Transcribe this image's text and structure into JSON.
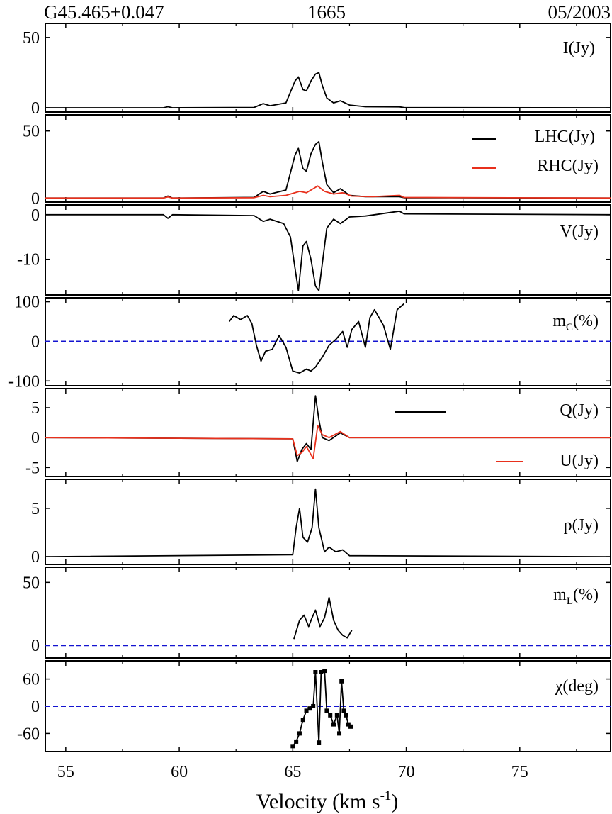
{
  "header": {
    "source": "G45.465+0.047",
    "frequency": "1665",
    "date": "05/2003"
  },
  "x_axis": {
    "label": "Velocity (km s",
    "label_sup": "-1",
    "label_close": ")",
    "ticks": [
      "55",
      "60",
      "65",
      "70",
      "75"
    ],
    "range": [
      54.1,
      79.0
    ]
  },
  "colors": {
    "black": "#000000",
    "red": "#e8301c",
    "blue": "#1414d0"
  },
  "chart_data": [
    {
      "type": "line",
      "panel_label": "I(Jy)",
      "ylim": [
        -3,
        60
      ],
      "yticks": [
        "0",
        "50"
      ],
      "ytick_values": [
        0,
        50
      ],
      "series": [
        {
          "color": "#000000",
          "points": [
            [
              54.1,
              0
            ],
            [
              59.3,
              0
            ],
            [
              59.5,
              0.8
            ],
            [
              59.7,
              0
            ],
            [
              63.3,
              0.3
            ],
            [
              63.7,
              3
            ],
            [
              64.0,
              1.5
            ],
            [
              64.7,
              3.5
            ],
            [
              65.1,
              19
            ],
            [
              65.25,
              22
            ],
            [
              65.45,
              13
            ],
            [
              65.6,
              12
            ],
            [
              65.8,
              19
            ],
            [
              66.0,
              24
            ],
            [
              66.15,
              25
            ],
            [
              66.3,
              16
            ],
            [
              66.5,
              7
            ],
            [
              66.8,
              3.5
            ],
            [
              67.1,
              5
            ],
            [
              67.5,
              2
            ],
            [
              68.2,
              0.8
            ],
            [
              69.7,
              0.7
            ],
            [
              69.9,
              0.2
            ],
            [
              79,
              0
            ]
          ]
        }
      ]
    },
    {
      "type": "line",
      "panel_label_left": "LHC(Jy)",
      "panel_label_right": "RHC(Jy)",
      "ylim": [
        -3,
        62
      ],
      "yticks": [
        "0",
        "50"
      ],
      "ytick_values": [
        0,
        50
      ],
      "series": [
        {
          "name": "LHC(Jy)",
          "color": "#000000",
          "points": [
            [
              54.1,
              0
            ],
            [
              59.3,
              0
            ],
            [
              59.5,
              1.5
            ],
            [
              59.7,
              0
            ],
            [
              63.3,
              0.5
            ],
            [
              63.7,
              5
            ],
            [
              64.0,
              3
            ],
            [
              64.7,
              6
            ],
            [
              65.1,
              32
            ],
            [
              65.25,
              37
            ],
            [
              65.45,
              22
            ],
            [
              65.6,
              20
            ],
            [
              65.8,
              33
            ],
            [
              66.0,
              40
            ],
            [
              66.15,
              42
            ],
            [
              66.3,
              27
            ],
            [
              66.5,
              10
            ],
            [
              66.8,
              4
            ],
            [
              67.1,
              7
            ],
            [
              67.5,
              2
            ],
            [
              68.2,
              1
            ],
            [
              69.7,
              1
            ],
            [
              69.9,
              0.3
            ],
            [
              79,
              0
            ]
          ]
        },
        {
          "name": "RHC(Jy)",
          "color": "#e8301c",
          "points": [
            [
              54.1,
              0
            ],
            [
              59.3,
              0
            ],
            [
              59.5,
              0.8
            ],
            [
              59.7,
              0
            ],
            [
              63.3,
              0.3
            ],
            [
              63.7,
              2
            ],
            [
              64.0,
              1
            ],
            [
              64.7,
              2
            ],
            [
              65.1,
              4
            ],
            [
              65.3,
              5
            ],
            [
              65.6,
              4
            ],
            [
              65.9,
              7
            ],
            [
              66.1,
              9
            ],
            [
              66.4,
              5
            ],
            [
              66.8,
              3
            ],
            [
              67.2,
              4
            ],
            [
              67.6,
              1.5
            ],
            [
              68.5,
              1
            ],
            [
              69.7,
              2
            ],
            [
              69.9,
              0.5
            ],
            [
              79,
              0
            ]
          ]
        }
      ]
    },
    {
      "type": "line",
      "panel_label": "V(Jy)",
      "ylim": [
        -18,
        2.2
      ],
      "yticks": [
        "0",
        "-10"
      ],
      "ytick_values": [
        0,
        -10
      ],
      "series": [
        {
          "color": "#000000",
          "points": [
            [
              54.1,
              0
            ],
            [
              59.3,
              0
            ],
            [
              59.5,
              -0.8
            ],
            [
              59.7,
              0
            ],
            [
              63.3,
              -0.2
            ],
            [
              63.7,
              -1.5
            ],
            [
              64.0,
              -1
            ],
            [
              64.6,
              -2
            ],
            [
              64.9,
              -5
            ],
            [
              65.1,
              -12
            ],
            [
              65.25,
              -17
            ],
            [
              65.45,
              -7
            ],
            [
              65.6,
              -6
            ],
            [
              65.8,
              -10
            ],
            [
              66.0,
              -16
            ],
            [
              66.15,
              -17
            ],
            [
              66.3,
              -11
            ],
            [
              66.5,
              -3
            ],
            [
              66.8,
              -1
            ],
            [
              67.1,
              -2
            ],
            [
              67.5,
              -0.5
            ],
            [
              68.2,
              -0.3
            ],
            [
              69.7,
              0.8
            ],
            [
              69.9,
              0.2
            ],
            [
              79,
              0
            ]
          ]
        }
      ]
    },
    {
      "type": "line",
      "panel_label": "m",
      "panel_label_sub": "C",
      "panel_label_unit": "(%)",
      "ylim": [
        -112,
        110
      ],
      "yticks": [
        "100",
        "0",
        "-100"
      ],
      "ytick_values": [
        100,
        0,
        -100
      ],
      "reference_line": {
        "y": 0,
        "style": "dashed",
        "color": "#1414d0"
      },
      "series": [
        {
          "color": "#000000",
          "points": [
            [
              62.2,
              50
            ],
            [
              62.4,
              65
            ],
            [
              62.7,
              55
            ],
            [
              63.0,
              65
            ],
            [
              63.2,
              45
            ],
            [
              63.4,
              -10
            ],
            [
              63.6,
              -50
            ],
            [
              63.8,
              -25
            ],
            [
              64.1,
              -20
            ],
            [
              64.4,
              15
            ],
            [
              64.7,
              -15
            ],
            [
              65.0,
              -75
            ],
            [
              65.3,
              -80
            ],
            [
              65.6,
              -70
            ],
            [
              65.8,
              -75
            ],
            [
              66.0,
              -65
            ],
            [
              66.3,
              -40
            ],
            [
              66.6,
              -10
            ],
            [
              66.9,
              5
            ],
            [
              67.2,
              25
            ],
            [
              67.4,
              -15
            ],
            [
              67.6,
              30
            ],
            [
              67.9,
              50
            ],
            [
              68.2,
              -15
            ],
            [
              68.4,
              60
            ],
            [
              68.6,
              80
            ],
            [
              68.8,
              60
            ],
            [
              69.0,
              40
            ],
            [
              69.3,
              -20
            ],
            [
              69.6,
              80
            ],
            [
              69.9,
              95
            ]
          ]
        }
      ]
    },
    {
      "type": "line",
      "panel_label_left": "Q(Jy)",
      "panel_label_right": "U(Jy)",
      "ylim": [
        -6.5,
        8.2
      ],
      "yticks": [
        "5",
        "0",
        "-5"
      ],
      "ytick_values": [
        5,
        0,
        -5
      ],
      "series": [
        {
          "name": "Q(Jy)",
          "color": "#000000",
          "points": [
            [
              54.1,
              0
            ],
            [
              65.0,
              -0.2
            ],
            [
              65.2,
              -4
            ],
            [
              65.4,
              -2
            ],
            [
              65.6,
              -1
            ],
            [
              65.8,
              -2
            ],
            [
              66.0,
              7
            ],
            [
              66.15,
              3
            ],
            [
              66.3,
              0
            ],
            [
              66.6,
              -0.5
            ],
            [
              67.1,
              0.8
            ],
            [
              67.5,
              0
            ],
            [
              79,
              0
            ]
          ]
        },
        {
          "name": "U(Jy)",
          "color": "#e8301c",
          "points": [
            [
              54.1,
              0
            ],
            [
              65.0,
              -0.2
            ],
            [
              65.2,
              -3
            ],
            [
              65.4,
              -2.5
            ],
            [
              65.6,
              -1.5
            ],
            [
              65.9,
              -3.5
            ],
            [
              66.1,
              2
            ],
            [
              66.3,
              0.5
            ],
            [
              66.6,
              0
            ],
            [
              67.1,
              1
            ],
            [
              67.5,
              0
            ],
            [
              79,
              0
            ]
          ]
        }
      ]
    },
    {
      "type": "line",
      "panel_label": "p(Jy)",
      "ylim": [
        -0.8,
        8
      ],
      "yticks": [
        "5",
        "0"
      ],
      "ytick_values": [
        5,
        0
      ],
      "series": [
        {
          "color": "#000000",
          "points": [
            [
              54.1,
              0
            ],
            [
              65.0,
              0.2
            ],
            [
              65.15,
              3
            ],
            [
              65.3,
              5
            ],
            [
              65.45,
              2
            ],
            [
              65.65,
              1.5
            ],
            [
              65.85,
              3
            ],
            [
              66.0,
              7
            ],
            [
              66.15,
              3
            ],
            [
              66.4,
              0.5
            ],
            [
              66.6,
              1
            ],
            [
              66.9,
              0.5
            ],
            [
              67.2,
              0.7
            ],
            [
              67.5,
              0.1
            ],
            [
              79,
              0
            ]
          ]
        }
      ]
    },
    {
      "type": "line",
      "panel_label": "m",
      "panel_label_sub": "L",
      "panel_label_unit": "(%)",
      "ylim": [
        -10,
        62
      ],
      "yticks": [
        "50",
        "0"
      ],
      "ytick_values": [
        50,
        0
      ],
      "reference_line": {
        "y": 0,
        "style": "dashed",
        "color": "#1414d0"
      },
      "series": [
        {
          "color": "#000000",
          "points": [
            [
              65.05,
              5
            ],
            [
              65.3,
              20
            ],
            [
              65.5,
              24
            ],
            [
              65.7,
              15
            ],
            [
              65.85,
              22
            ],
            [
              66.0,
              28
            ],
            [
              66.2,
              15
            ],
            [
              66.4,
              22
            ],
            [
              66.6,
              38
            ],
            [
              66.8,
              20
            ],
            [
              67.0,
              12
            ],
            [
              67.2,
              8
            ],
            [
              67.4,
              6
            ],
            [
              67.6,
              12
            ]
          ]
        }
      ]
    },
    {
      "type": "line",
      "panel_label": "χ(deg)",
      "ylim": [
        -100,
        100
      ],
      "yticks": [
        "60",
        "0",
        "-60"
      ],
      "ytick_values": [
        60,
        0,
        -60
      ],
      "reference_line": {
        "y": 0,
        "style": "dashed",
        "color": "#1414d0"
      },
      "series": [
        {
          "color": "#000000",
          "marker": "square",
          "points": [
            [
              65.0,
              -88
            ],
            [
              65.15,
              -78
            ],
            [
              65.3,
              -60
            ],
            [
              65.45,
              -30
            ],
            [
              65.6,
              -10
            ],
            [
              65.75,
              -5
            ],
            [
              65.9,
              0
            ],
            [
              66.0,
              75
            ],
            [
              66.15,
              -80
            ],
            [
              66.25,
              75
            ],
            [
              66.4,
              78
            ],
            [
              66.5,
              -10
            ],
            [
              66.65,
              -20
            ],
            [
              66.8,
              -40
            ],
            [
              66.95,
              -20
            ],
            [
              67.05,
              -60
            ],
            [
              67.15,
              55
            ],
            [
              67.25,
              -10
            ],
            [
              67.35,
              -20
            ],
            [
              67.45,
              -40
            ],
            [
              67.55,
              -45
            ]
          ]
        }
      ]
    }
  ]
}
